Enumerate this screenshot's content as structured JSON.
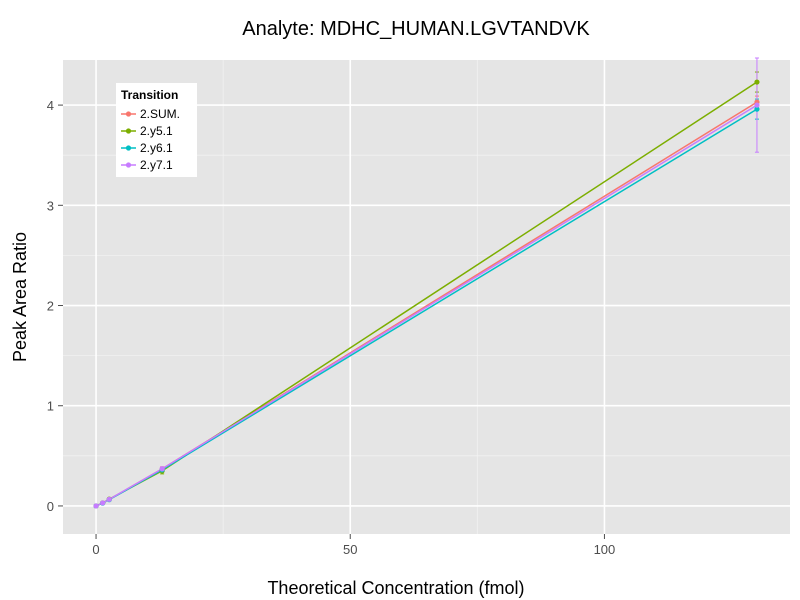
{
  "chart_data": {
    "type": "line",
    "title": "Analyte: MDHC_HUMAN.LGVTANDVK",
    "xlabel": "Theoretical Concentration (fmol)",
    "ylabel": "Peak Area Ratio",
    "xlim": [
      -6.5,
      136.5
    ],
    "ylim": [
      -0.28,
      4.45
    ],
    "xticks": [
      0,
      50,
      100
    ],
    "xtick_labels": [
      "0",
      "50",
      "100"
    ],
    "yticks": [
      0,
      1,
      2,
      3,
      4
    ],
    "ytick_labels": [
      "0",
      "1",
      "2",
      "3",
      "4"
    ],
    "grid": true,
    "legend": {
      "title": "Transition",
      "position": "top-left"
    },
    "x": [
      0,
      1.3,
      2.6,
      13,
      130
    ],
    "series": [
      {
        "name": "2.SUM.",
        "color": "#F8766D",
        "values": [
          0,
          0.03,
          0.065,
          0.37,
          4.03
        ],
        "err": [
          0,
          0,
          0,
          0.02,
          0.06
        ]
      },
      {
        "name": "2.y5.1",
        "color": "#7CAE00",
        "values": [
          0,
          0.03,
          0.068,
          0.35,
          4.23
        ],
        "err": [
          0,
          0,
          0,
          0.03,
          0.1
        ]
      },
      {
        "name": "2.y6.1",
        "color": "#00BFC4",
        "values": [
          0,
          0.028,
          0.063,
          0.36,
          3.96
        ],
        "err": [
          0,
          0,
          0,
          0.02,
          0.1
        ]
      },
      {
        "name": "2.y7.1",
        "color": "#C77CFF",
        "values": [
          0,
          0.03,
          0.066,
          0.37,
          4.0
        ],
        "err": [
          0,
          0,
          0,
          0.02,
          0.47
        ]
      }
    ]
  }
}
